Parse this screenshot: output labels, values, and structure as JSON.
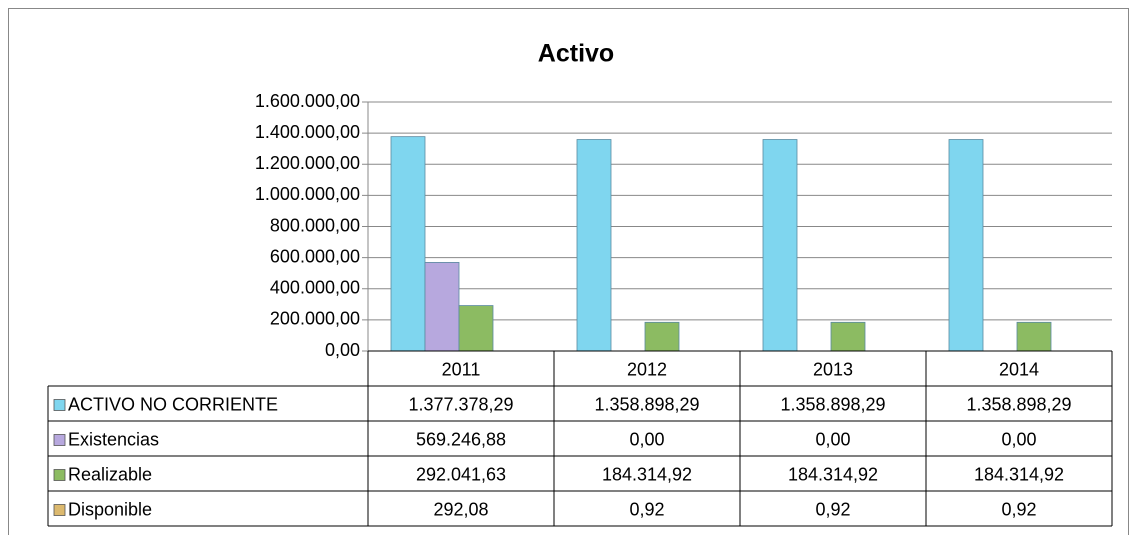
{
  "chart_data": {
    "type": "bar",
    "title": "Activo",
    "categories": [
      "2011",
      "2012",
      "2013",
      "2014"
    ],
    "series": [
      {
        "name": "ACTIVO NO CORRIENTE",
        "color": "#7fd6ef",
        "values": [
          1377378.29,
          1358898.29,
          1358898.29,
          1358898.29
        ],
        "value_labels": [
          "1.377.378,29",
          "1.358.898,29",
          "1.358.898,29",
          "1.358.898,29"
        ]
      },
      {
        "name": "Existencias",
        "color": "#b7a8de",
        "values": [
          569246.88,
          0,
          0,
          0
        ],
        "value_labels": [
          "569.246,88",
          "0,00",
          "0,00",
          "0,00"
        ]
      },
      {
        "name": "Realizable",
        "color": "#8cbb62",
        "values": [
          292041.63,
          184314.92,
          184314.92,
          184314.92
        ],
        "value_labels": [
          "292.041,63",
          "184.314,92",
          "184.314,92",
          "184.314,92"
        ]
      },
      {
        "name": "Disponible",
        "color": "#dcb96e",
        "values": [
          292.08,
          0.92,
          0.92,
          0.92
        ],
        "value_labels": [
          "292,08",
          "0,92",
          "0,92",
          "0,92"
        ]
      }
    ],
    "ylim": [
      0,
      1600000
    ],
    "yticks": [
      {
        "value": 0,
        "label": "0,00"
      },
      {
        "value": 200000,
        "label": "200.000,00"
      },
      {
        "value": 400000,
        "label": "400.000,00"
      },
      {
        "value": 600000,
        "label": "600.000,00"
      },
      {
        "value": 800000,
        "label": "800.000,00"
      },
      {
        "value": 1000000,
        "label": "1.000.000,00"
      },
      {
        "value": 1200000,
        "label": "1.200.000,00"
      },
      {
        "value": 1400000,
        "label": "1.400.000,00"
      },
      {
        "value": 1600000,
        "label": "1.600.000,00"
      }
    ],
    "grid": true
  }
}
